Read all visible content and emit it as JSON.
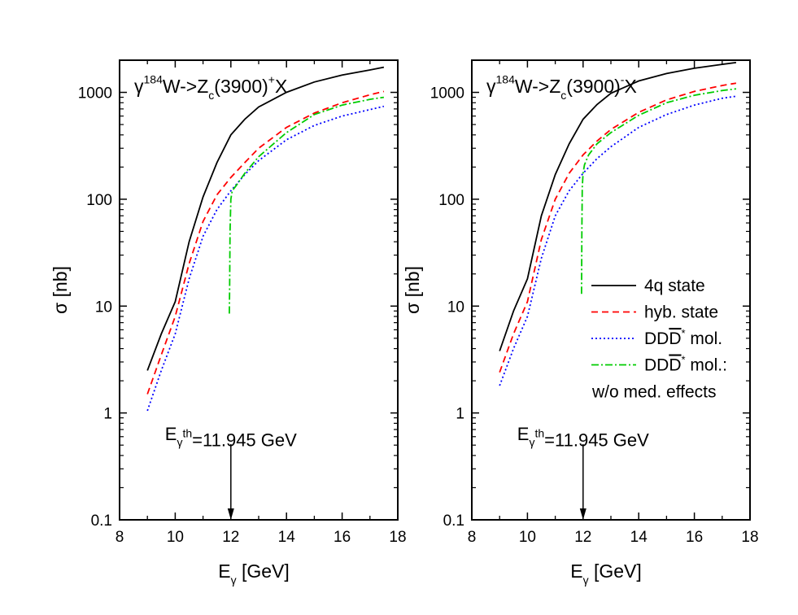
{
  "colors": {
    "4q": "#000000",
    "hyb": "#ff0000",
    "mol": "#0000ff",
    "mol_nomed": "#00cc00"
  },
  "chart_data": [
    {
      "type": "line",
      "yscale": "log",
      "xlim": [
        8,
        18
      ],
      "ylim": [
        0.1,
        2000
      ],
      "xticks": [
        "8",
        "10",
        "12",
        "14",
        "16",
        "18"
      ],
      "yticks": [
        "0.1",
        "1",
        "10",
        "100",
        "1000"
      ],
      "xlabel": "E_γ [GeV]",
      "ylabel": "σ [nb]",
      "title": "γ^184W->Z_c(3900)^+X",
      "annotation": "E_γ^th=11.945 GeV",
      "arrow_x": 12,
      "series": [
        {
          "key": "4q",
          "x": [
            9,
            9.5,
            10,
            10.5,
            11,
            11.5,
            12,
            12.5,
            13,
            14,
            15,
            16,
            17,
            17.5
          ],
          "y": [
            2.5,
            5.5,
            11,
            40,
            105,
            220,
            400,
            560,
            730,
            1000,
            1250,
            1450,
            1620,
            1720
          ]
        },
        {
          "key": "hyb",
          "x": [
            9,
            9.5,
            10,
            10.5,
            11,
            11.5,
            12,
            12.5,
            13,
            14,
            15,
            16,
            17,
            17.5
          ],
          "y": [
            1.5,
            3.5,
            8,
            25,
            62,
            110,
            160,
            220,
            300,
            470,
            640,
            800,
            950,
            1020
          ]
        },
        {
          "key": "mol",
          "x": [
            9,
            9.5,
            10,
            10.5,
            11,
            11.5,
            12,
            12.5,
            13,
            14,
            15,
            16,
            17,
            17.5
          ],
          "y": [
            1.05,
            2.5,
            5.5,
            18,
            45,
            80,
            120,
            170,
            230,
            360,
            490,
            600,
            690,
            740
          ]
        },
        {
          "key": "mol_nomed",
          "x": [
            11.945,
            11.955,
            11.97,
            12,
            12.05,
            12.2,
            12.5,
            13,
            14,
            15,
            16,
            17,
            17.5
          ],
          "y": [
            8.5,
            15,
            50,
            100,
            120,
            135,
            175,
            250,
            420,
            620,
            760,
            860,
            900
          ]
        }
      ]
    },
    {
      "type": "line",
      "yscale": "log",
      "xlim": [
        8,
        18
      ],
      "ylim": [
        0.1,
        2000
      ],
      "xticks": [
        "8",
        "10",
        "12",
        "14",
        "16",
        "18"
      ],
      "yticks": [
        "0.1",
        "1",
        "10",
        "100",
        "1000"
      ],
      "xlabel": "E_γ [GeV]",
      "ylabel": "σ [nb]",
      "title": "γ^184W->Z_c(3900)^-X",
      "annotation": "E_γ^th=11.945 GeV",
      "arrow_x": 12,
      "series": [
        {
          "key": "4q",
          "name": "4q state",
          "x": [
            9,
            9.5,
            10,
            10.5,
            11,
            11.5,
            12,
            12.5,
            13,
            14,
            15,
            16,
            17,
            17.5
          ],
          "y": [
            3.8,
            9,
            18,
            70,
            170,
            330,
            560,
            770,
            980,
            1280,
            1500,
            1680,
            1830,
            1900
          ]
        },
        {
          "key": "hyb",
          "name": "hyb. state",
          "x": [
            9,
            9.5,
            10,
            10.5,
            11,
            11.5,
            12,
            12.5,
            13,
            14,
            15,
            16,
            17,
            17.5
          ],
          "y": [
            2.4,
            5.5,
            11,
            42,
            100,
            175,
            260,
            350,
            450,
            650,
            850,
            1020,
            1160,
            1220
          ]
        },
        {
          "key": "mol",
          "name": "DD̄* mol.",
          "x": [
            9,
            9.5,
            10,
            10.5,
            11,
            11.5,
            12,
            12.5,
            13,
            14,
            15,
            16,
            17,
            17.5
          ],
          "y": [
            1.8,
            4,
            8,
            28,
            70,
            120,
            175,
            240,
            310,
            470,
            620,
            760,
            880,
            920
          ]
        },
        {
          "key": "mol_nomed",
          "name": "DD̄*mol.:",
          "name2": "w/o med. effects",
          "x": [
            11.945,
            11.955,
            11.97,
            12,
            12.05,
            12.2,
            12.5,
            13,
            14,
            15,
            16,
            17,
            17.5
          ],
          "y": [
            13,
            50,
            130,
            175,
            210,
            260,
            330,
            420,
            610,
            800,
            940,
            1040,
            1080
          ]
        }
      ]
    }
  ]
}
